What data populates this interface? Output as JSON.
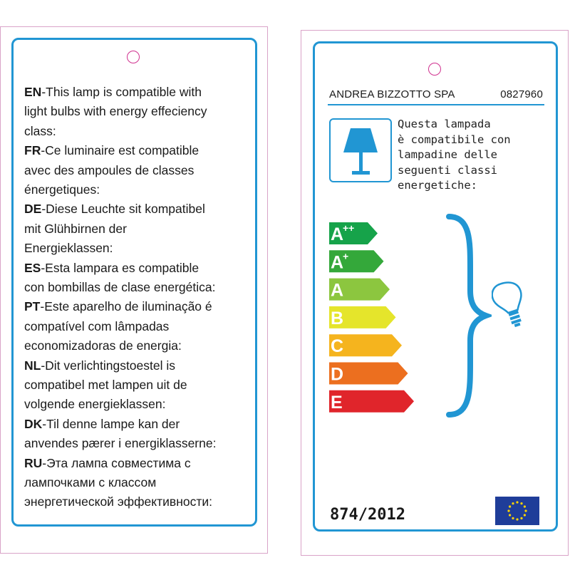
{
  "left_card": {
    "entries": [
      {
        "code": "EN",
        "lines": [
          "-This lamp is compatible with",
          "light bulbs with energy effeciency",
          "class:"
        ]
      },
      {
        "code": "FR",
        "lines": [
          "-Ce luminaire est compatible",
          "avec des ampoules de classes",
          "énergetiques:"
        ]
      },
      {
        "code": "DE",
        "lines": [
          "-Diese Leuchte sit kompatibel",
          "mit Glühbirnen der",
          "Energieklassen:"
        ]
      },
      {
        "code": "ES",
        "lines": [
          "-Esta lampara es compatible",
          "con bombillas de clase energética:"
        ]
      },
      {
        "code": "PT",
        "lines": [
          "-Este aparelho de iluminação é",
          "compatível com lâmpadas",
          "economizadoras de energia:"
        ]
      },
      {
        "code": "NL",
        "lines": [
          "-Dit verlichtingstoestel is",
          "compatibel met lampen uit de",
          "volgende energieklassen:"
        ]
      },
      {
        "code": "DK",
        "lines": [
          "-Til denne lampe kan der",
          "anvendes pærer i energiklasserne:"
        ]
      },
      {
        "code": "RU",
        "lines": [
          "-Эта лампа совместима с",
          "лампочками с классом",
          "энергетической эффективности:"
        ]
      }
    ]
  },
  "right_card": {
    "company": "ANDREA BIZZOTTO SPA",
    "product_code": "0827960",
    "italian_text": [
      "Questa lampada",
      "è compatibile con",
      "lampadine delle",
      "seguenti classi",
      "energetiche:"
    ],
    "regulation": "874/2012",
    "lamp_icon": "table-lamp-icon",
    "bulb_icon": "light-bulb-icon",
    "eu_icon": "eu-flag-icon",
    "accent_color": "#2196d3",
    "energy_classes": [
      {
        "label": "A",
        "sup": "++",
        "color": "#16a34a"
      },
      {
        "label": "A",
        "sup": "+",
        "color": "#34a83a"
      },
      {
        "label": "A",
        "sup": "",
        "color": "#8cc63f"
      },
      {
        "label": "B",
        "sup": "",
        "color": "#e5e52b"
      },
      {
        "label": "C",
        "sup": "",
        "color": "#f5b41e"
      },
      {
        "label": "D",
        "sup": "",
        "color": "#ec6f1f"
      },
      {
        "label": "E",
        "sup": "",
        "color": "#e0252b"
      }
    ]
  }
}
